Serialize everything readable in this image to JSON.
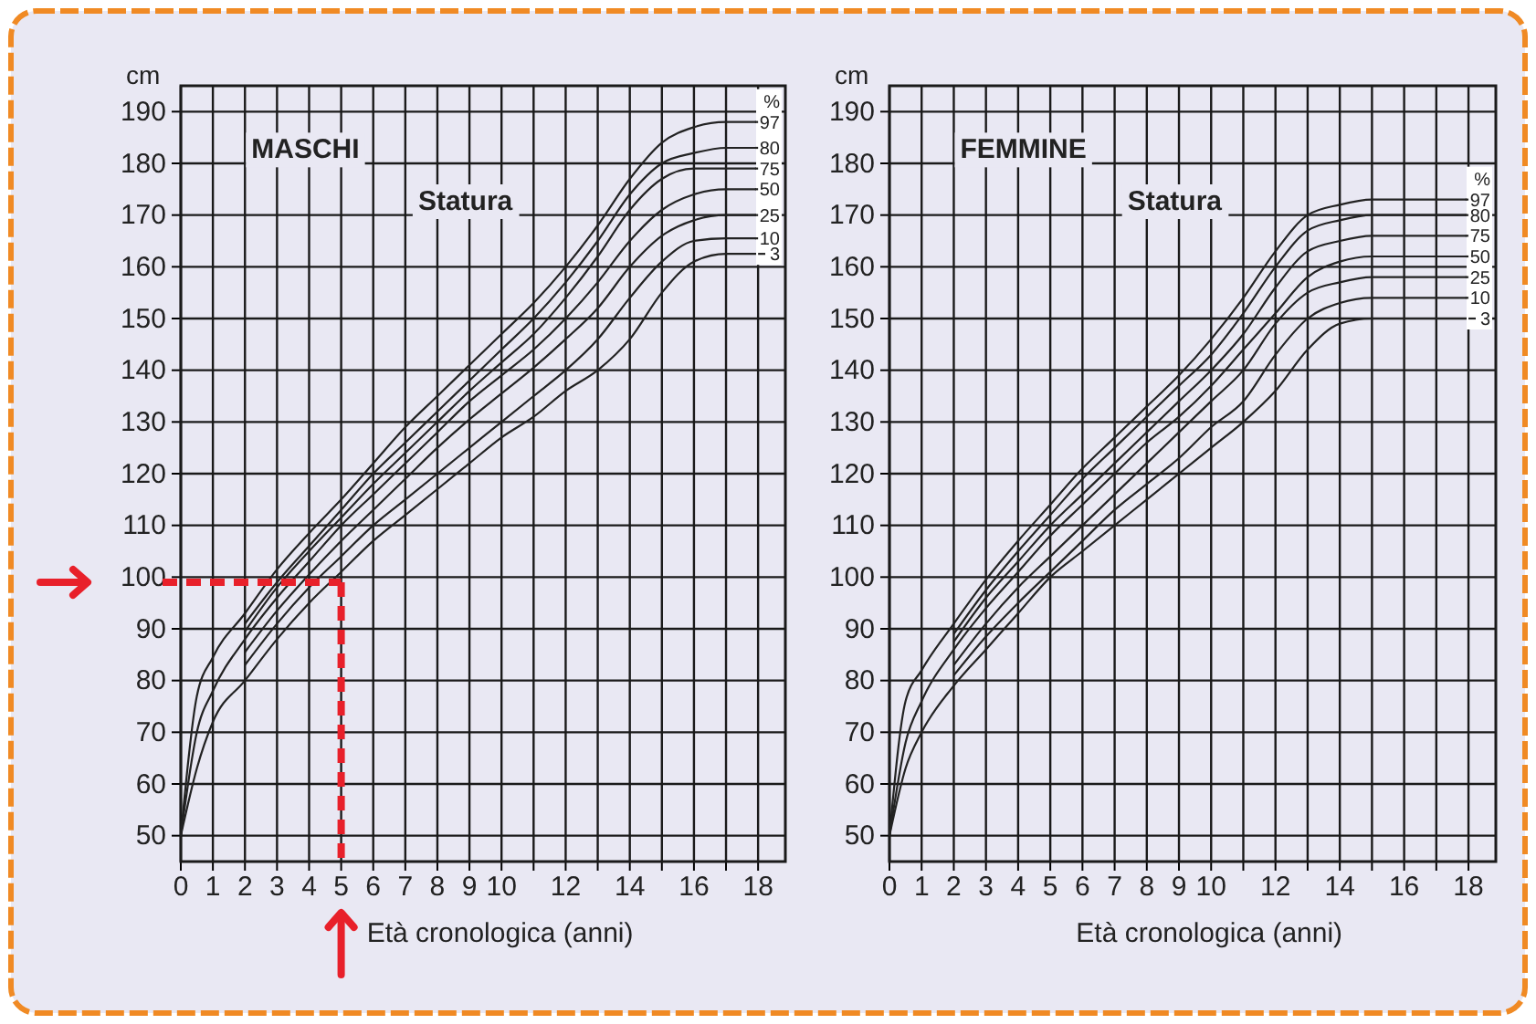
{
  "chart_data": [
    {
      "type": "line",
      "title": "MASCHI",
      "subtitle": "Statura",
      "xlabel": "Età cronologica (anni)",
      "ylabel": "cm",
      "legend_title": "%",
      "xlim": [
        0,
        18.85
      ],
      "ylim": [
        45,
        195
      ],
      "xticks": [
        0,
        1,
        2,
        3,
        4,
        5,
        6,
        7,
        8,
        9,
        10,
        {
          "value": 11,
          "label": null
        },
        12,
        {
          "value": 13,
          "label": null
        },
        14,
        {
          "value": 15,
          "label": null
        },
        16,
        {
          "value": 17,
          "label": null
        },
        18
      ],
      "yticks": [
        50,
        60,
        70,
        80,
        90,
        100,
        110,
        120,
        130,
        140,
        150,
        160,
        170,
        180,
        190
      ],
      "grid": true,
      "line_style": "solid",
      "legend": "right",
      "ref_lines": [
        {
          "axis": "y",
          "value": 99,
          "color": "#e8202a",
          "line_style": "dashed"
        },
        {
          "axis": "x",
          "value": 5,
          "color": "#e8202a",
          "line_style": "dashed"
        }
      ],
      "series": [
        {
          "name": "97",
          "color": "#222222",
          "x": [
            0,
            0.5,
            1,
            2,
            3,
            4,
            5,
            6,
            7,
            8,
            9,
            10,
            11,
            12,
            13,
            14,
            15,
            16,
            17,
            18
          ],
          "values": [
            50,
            77,
            84.5,
            93,
            101.5,
            108.5,
            115,
            122,
            129,
            135,
            141,
            147,
            153,
            160,
            168,
            177,
            184,
            187,
            188,
            188
          ]
        },
        {
          "name": "80",
          "color": "#222222",
          "x": [
            2,
            3,
            4,
            5,
            6,
            7,
            8,
            9,
            10,
            11,
            12,
            13,
            14,
            15,
            16,
            17,
            18
          ],
          "values": [
            91,
            99,
            106,
            113,
            120,
            126,
            132,
            138,
            144,
            150,
            157,
            165,
            174,
            180,
            182,
            183,
            183
          ]
        },
        {
          "name": "75",
          "color": "#222222",
          "x": [
            2,
            3,
            4,
            5,
            6,
            7,
            8,
            9,
            10,
            11,
            12,
            13,
            14,
            15,
            16,
            17,
            18
          ],
          "values": [
            89.5,
            98,
            105,
            111.5,
            118,
            124,
            130,
            136,
            141.5,
            147,
            154,
            162,
            171,
            177,
            179,
            179,
            179
          ]
        },
        {
          "name": "50",
          "color": "#222222",
          "x": [
            0,
            0.5,
            1,
            2,
            3,
            4,
            5,
            6,
            7,
            8,
            9,
            10,
            11,
            12,
            13,
            14,
            15,
            16,
            17,
            18
          ],
          "values": [
            50,
            70,
            78,
            88,
            96,
            103,
            110,
            116,
            122,
            128,
            134,
            139,
            144,
            150,
            157,
            165,
            171,
            174,
            175,
            175
          ]
        },
        {
          "name": "25",
          "color": "#222222",
          "x": [
            2,
            3,
            4,
            5,
            6,
            7,
            8,
            9,
            10,
            11,
            12,
            13,
            14,
            15,
            16,
            17,
            18
          ],
          "values": [
            85.5,
            93.5,
            100.5,
            107,
            113,
            119,
            125,
            130.5,
            135.5,
            140.5,
            146,
            152,
            160,
            166,
            169,
            170,
            170
          ]
        },
        {
          "name": "10",
          "color": "#222222",
          "x": [
            2,
            3,
            4,
            5,
            6,
            7,
            8,
            9,
            10,
            11,
            12,
            13,
            14,
            15,
            16,
            17,
            18
          ],
          "values": [
            83,
            91,
            98,
            104,
            110,
            115,
            120,
            125,
            130,
            135,
            140,
            146,
            154,
            161,
            165,
            165.5,
            165.5
          ]
        },
        {
          "name": "3",
          "color": "#222222",
          "x": [
            0,
            0.5,
            1,
            2,
            3,
            4,
            5,
            6,
            7,
            8,
            9,
            10,
            11,
            12,
            13,
            14,
            15,
            16,
            17,
            18
          ],
          "values": [
            50,
            63,
            72,
            80,
            88,
            95,
            101,
            107,
            112,
            117,
            122,
            127,
            131,
            136,
            140,
            146,
            155,
            161,
            162.5,
            162.5
          ]
        }
      ]
    },
    {
      "type": "line",
      "title": "FEMMINE",
      "subtitle": "Statura",
      "xlabel": "Età cronologica (anni)",
      "ylabel": "cm",
      "legend_title": "%",
      "xlim": [
        0,
        18.85
      ],
      "ylim": [
        45,
        195
      ],
      "xticks": [
        0,
        1,
        2,
        3,
        4,
        5,
        6,
        7,
        8,
        9,
        10,
        {
          "value": 11,
          "label": null
        },
        12,
        {
          "value": 13,
          "label": null
        },
        14,
        {
          "value": 15,
          "label": null
        },
        16,
        {
          "value": 17,
          "label": null
        },
        18
      ],
      "yticks": [
        50,
        60,
        70,
        80,
        90,
        100,
        110,
        120,
        130,
        140,
        150,
        160,
        170,
        180,
        190
      ],
      "grid": true,
      "line_style": "solid",
      "legend": "right",
      "series": [
        {
          "name": "97",
          "color": "#222222",
          "x": [
            0,
            0.5,
            1,
            2,
            3,
            4,
            5,
            6,
            7,
            8,
            9,
            10,
            11,
            12,
            13,
            14,
            15,
            16,
            17,
            18
          ],
          "values": [
            50,
            76,
            82,
            91,
            99.5,
            107,
            114,
            121,
            127,
            133,
            139,
            146,
            154,
            163,
            170,
            172,
            173,
            173,
            173,
            173
          ]
        },
        {
          "name": "80",
          "color": "#222222",
          "x": [
            2,
            3,
            4,
            5,
            6,
            7,
            8,
            9,
            10,
            11,
            12,
            13,
            14,
            15,
            16,
            17,
            18
          ],
          "values": [
            89,
            97.5,
            105,
            112,
            119,
            125,
            131,
            137,
            143,
            151,
            160,
            167,
            169,
            170,
            170,
            170,
            170
          ]
        },
        {
          "name": "75",
          "color": "#222222",
          "x": [
            2,
            3,
            4,
            5,
            6,
            7,
            8,
            9,
            10,
            11,
            12,
            13,
            14,
            15,
            16,
            17,
            18
          ],
          "values": [
            87.5,
            96,
            103,
            110,
            116,
            122,
            128,
            134,
            140,
            147,
            156,
            163,
            165,
            166,
            166,
            166,
            166
          ]
        },
        {
          "name": "50",
          "color": "#222222",
          "x": [
            0,
            0.5,
            1,
            2,
            3,
            4,
            5,
            6,
            7,
            8,
            9,
            10,
            11,
            12,
            13,
            14,
            15,
            16,
            17,
            18
          ],
          "values": [
            50,
            68,
            76,
            86,
            94,
            101,
            108,
            114,
            120,
            126,
            131,
            137,
            144,
            151,
            158,
            161,
            162,
            162,
            162,
            162
          ]
        },
        {
          "name": "25",
          "color": "#222222",
          "x": [
            2,
            3,
            4,
            5,
            6,
            7,
            8,
            9,
            10,
            11,
            12,
            13,
            14,
            15,
            16,
            17,
            18
          ],
          "values": [
            83,
            91,
            98,
            104,
            110,
            116,
            122,
            128,
            134,
            140,
            149,
            155,
            157,
            158,
            158,
            158,
            158
          ]
        },
        {
          "name": "10",
          "color": "#222222",
          "x": [
            2,
            3,
            4,
            5,
            6,
            7,
            8,
            9,
            10,
            11,
            12,
            13,
            14,
            15,
            16,
            17,
            18
          ],
          "values": [
            81,
            88.5,
            95,
            101,
            107,
            113,
            118,
            123,
            129,
            134,
            143,
            150,
            153,
            154,
            154,
            154,
            154
          ]
        },
        {
          "name": "3",
          "color": "#222222",
          "x": [
            0,
            0.5,
            1,
            2,
            3,
            4,
            5,
            6,
            7,
            8,
            9,
            10,
            11,
            12,
            13,
            14,
            15,
            16,
            17,
            18
          ],
          "values": [
            50,
            63,
            70,
            79,
            86,
            93,
            100,
            105,
            110,
            115,
            120,
            125,
            130,
            136,
            144,
            149,
            150,
            150,
            150,
            150
          ]
        }
      ]
    }
  ]
}
